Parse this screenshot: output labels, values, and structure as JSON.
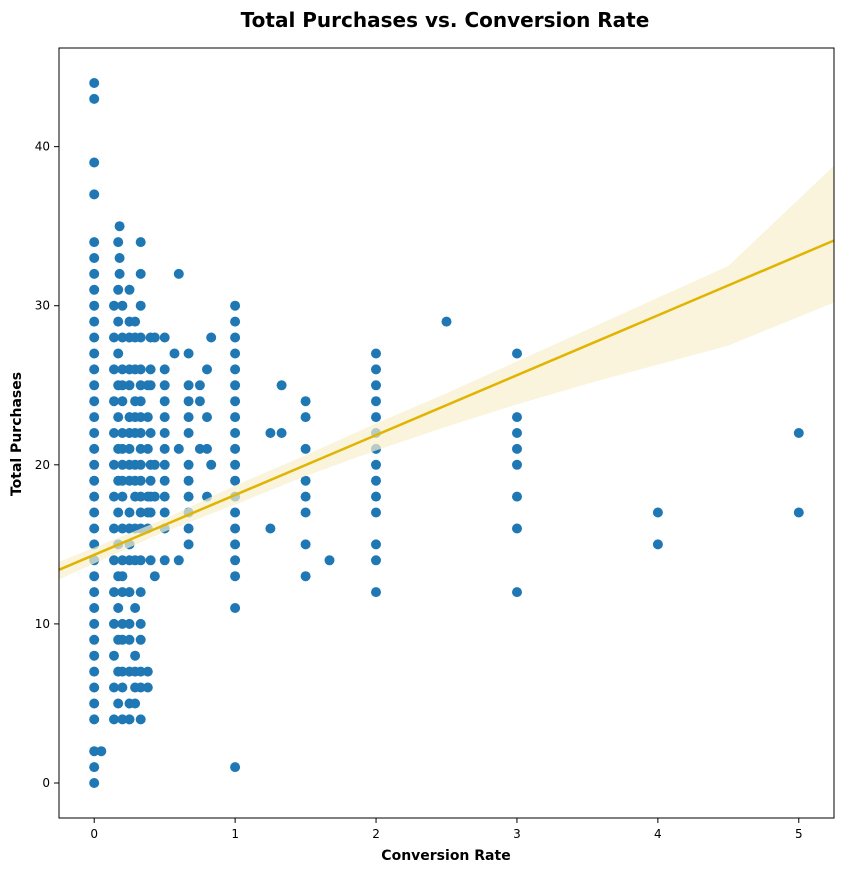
{
  "chart_data": {
    "type": "scatter",
    "title": "Total Purchases vs. Conversion Rate",
    "xlabel": "Conversion Rate",
    "ylabel": "Total Purchases",
    "xlim": [
      -0.25,
      5.25
    ],
    "ylim": [
      -2.2,
      46.2
    ],
    "xticks": [
      0,
      1,
      2,
      3,
      4,
      5
    ],
    "yticks": [
      0,
      10,
      20,
      30,
      40
    ],
    "grid": false,
    "legend": "none",
    "point_color": "#1f77b4",
    "regression_color": "#e0b400",
    "band_color": "#f7efcc",
    "regression": {
      "x": [
        -0.25,
        5.25
      ],
      "y": [
        13.4,
        34.1
      ]
    },
    "confidence_band": {
      "x": [
        -0.25,
        0.5,
        1.0,
        1.5,
        2.0,
        2.5,
        3.0,
        3.5,
        4.0,
        4.5,
        5.25
      ],
      "lower": [
        12.8,
        15.8,
        17.5,
        19.3,
        20.9,
        22.4,
        23.8,
        25.1,
        26.3,
        27.5,
        30.2
      ],
      "upper": [
        13.9,
        16.6,
        18.7,
        20.6,
        22.6,
        24.5,
        26.5,
        28.5,
        30.5,
        32.5,
        38.8
      ]
    },
    "points": [
      [
        0,
        44
      ],
      [
        0,
        43
      ],
      [
        0,
        39
      ],
      [
        0,
        37
      ],
      [
        0,
        34
      ],
      [
        0,
        33
      ],
      [
        0,
        32
      ],
      [
        0,
        31
      ],
      [
        0,
        30
      ],
      [
        0,
        29
      ],
      [
        0,
        28
      ],
      [
        0,
        27
      ],
      [
        0,
        26
      ],
      [
        0,
        25
      ],
      [
        0,
        24
      ],
      [
        0,
        23
      ],
      [
        0,
        22
      ],
      [
        0,
        21
      ],
      [
        0,
        20
      ],
      [
        0,
        19
      ],
      [
        0,
        18
      ],
      [
        0,
        17
      ],
      [
        0,
        16
      ],
      [
        0,
        15
      ],
      [
        0,
        14
      ],
      [
        0,
        13
      ],
      [
        0,
        12
      ],
      [
        0,
        11
      ],
      [
        0,
        10
      ],
      [
        0,
        9
      ],
      [
        0,
        8
      ],
      [
        0,
        7
      ],
      [
        0,
        6
      ],
      [
        0,
        5
      ],
      [
        0,
        4
      ],
      [
        0,
        2
      ],
      [
        0,
        1
      ],
      [
        0,
        0
      ],
      [
        0.05,
        2
      ],
      [
        0.14,
        30
      ],
      [
        0.14,
        28
      ],
      [
        0.14,
        26
      ],
      [
        0.14,
        24
      ],
      [
        0.14,
        22
      ],
      [
        0.14,
        20
      ],
      [
        0.14,
        18
      ],
      [
        0.14,
        16
      ],
      [
        0.14,
        14
      ],
      [
        0.14,
        12
      ],
      [
        0.14,
        10
      ],
      [
        0.14,
        8
      ],
      [
        0.14,
        6
      ],
      [
        0.14,
        4
      ],
      [
        0.17,
        34
      ],
      [
        0.17,
        31
      ],
      [
        0.17,
        29
      ],
      [
        0.17,
        27
      ],
      [
        0.17,
        25
      ],
      [
        0.17,
        23
      ],
      [
        0.17,
        21
      ],
      [
        0.17,
        19
      ],
      [
        0.17,
        17
      ],
      [
        0.17,
        15
      ],
      [
        0.17,
        13
      ],
      [
        0.17,
        11
      ],
      [
        0.17,
        9
      ],
      [
        0.17,
        7
      ],
      [
        0.17,
        5
      ],
      [
        0.18,
        35
      ],
      [
        0.18,
        33
      ],
      [
        0.18,
        32
      ],
      [
        0.2,
        30
      ],
      [
        0.2,
        28
      ],
      [
        0.2,
        26
      ],
      [
        0.2,
        25
      ],
      [
        0.2,
        24
      ],
      [
        0.2,
        22
      ],
      [
        0.2,
        21
      ],
      [
        0.2,
        20
      ],
      [
        0.2,
        19
      ],
      [
        0.2,
        18
      ],
      [
        0.2,
        16
      ],
      [
        0.2,
        14
      ],
      [
        0.2,
        13
      ],
      [
        0.2,
        12
      ],
      [
        0.2,
        10
      ],
      [
        0.2,
        9
      ],
      [
        0.2,
        7
      ],
      [
        0.2,
        6
      ],
      [
        0.2,
        4
      ],
      [
        0.25,
        31
      ],
      [
        0.25,
        29
      ],
      [
        0.25,
        28
      ],
      [
        0.25,
        26
      ],
      [
        0.25,
        25
      ],
      [
        0.25,
        23
      ],
      [
        0.25,
        22
      ],
      [
        0.25,
        21
      ],
      [
        0.25,
        20
      ],
      [
        0.25,
        19
      ],
      [
        0.25,
        17
      ],
      [
        0.25,
        16
      ],
      [
        0.25,
        15
      ],
      [
        0.25,
        14
      ],
      [
        0.25,
        12
      ],
      [
        0.25,
        10
      ],
      [
        0.25,
        9
      ],
      [
        0.25,
        7
      ],
      [
        0.25,
        5
      ],
      [
        0.25,
        4
      ],
      [
        0.29,
        29
      ],
      [
        0.29,
        28
      ],
      [
        0.29,
        26
      ],
      [
        0.29,
        24
      ],
      [
        0.29,
        23
      ],
      [
        0.29,
        22
      ],
      [
        0.29,
        20
      ],
      [
        0.29,
        19
      ],
      [
        0.29,
        18
      ],
      [
        0.29,
        16
      ],
      [
        0.29,
        14
      ],
      [
        0.29,
        11
      ],
      [
        0.29,
        8
      ],
      [
        0.29,
        7
      ],
      [
        0.29,
        6
      ],
      [
        0.29,
        5
      ],
      [
        0.33,
        34
      ],
      [
        0.33,
        32
      ],
      [
        0.33,
        30
      ],
      [
        0.33,
        28
      ],
      [
        0.33,
        26
      ],
      [
        0.33,
        25
      ],
      [
        0.33,
        24
      ],
      [
        0.33,
        23
      ],
      [
        0.33,
        22
      ],
      [
        0.33,
        21
      ],
      [
        0.33,
        20
      ],
      [
        0.33,
        19
      ],
      [
        0.33,
        18
      ],
      [
        0.33,
        17
      ],
      [
        0.33,
        16
      ],
      [
        0.33,
        14
      ],
      [
        0.33,
        12
      ],
      [
        0.33,
        10
      ],
      [
        0.33,
        9
      ],
      [
        0.33,
        7
      ],
      [
        0.33,
        6
      ],
      [
        0.33,
        4
      ],
      [
        0.38,
        25
      ],
      [
        0.38,
        23
      ],
      [
        0.38,
        21
      ],
      [
        0.38,
        18
      ],
      [
        0.38,
        17
      ],
      [
        0.38,
        16
      ],
      [
        0.38,
        7
      ],
      [
        0.38,
        6
      ],
      [
        0.4,
        28
      ],
      [
        0.4,
        26
      ],
      [
        0.4,
        25
      ],
      [
        0.4,
        22
      ],
      [
        0.4,
        20
      ],
      [
        0.4,
        19
      ],
      [
        0.4,
        18
      ],
      [
        0.4,
        17
      ],
      [
        0.4,
        14
      ],
      [
        0.43,
        28
      ],
      [
        0.43,
        20
      ],
      [
        0.43,
        18
      ],
      [
        0.43,
        13
      ],
      [
        0.5,
        28
      ],
      [
        0.5,
        26
      ],
      [
        0.5,
        25
      ],
      [
        0.5,
        24
      ],
      [
        0.5,
        23
      ],
      [
        0.5,
        22
      ],
      [
        0.5,
        21
      ],
      [
        0.5,
        20
      ],
      [
        0.5,
        19
      ],
      [
        0.5,
        18
      ],
      [
        0.5,
        17
      ],
      [
        0.5,
        16
      ],
      [
        0.5,
        14
      ],
      [
        0.57,
        27
      ],
      [
        0.6,
        32
      ],
      [
        0.6,
        21
      ],
      [
        0.6,
        14
      ],
      [
        0.67,
        27
      ],
      [
        0.67,
        25
      ],
      [
        0.67,
        24
      ],
      [
        0.67,
        23
      ],
      [
        0.67,
        22
      ],
      [
        0.67,
        20
      ],
      [
        0.67,
        19
      ],
      [
        0.67,
        18
      ],
      [
        0.67,
        17
      ],
      [
        0.67,
        16
      ],
      [
        0.67,
        15
      ],
      [
        0.75,
        25
      ],
      [
        0.75,
        24
      ],
      [
        0.75,
        21
      ],
      [
        0.8,
        26
      ],
      [
        0.8,
        23
      ],
      [
        0.8,
        21
      ],
      [
        0.8,
        18
      ],
      [
        0.83,
        28
      ],
      [
        0.83,
        20
      ],
      [
        1,
        30
      ],
      [
        1,
        29
      ],
      [
        1,
        28
      ],
      [
        1,
        27
      ],
      [
        1,
        26
      ],
      [
        1,
        25
      ],
      [
        1,
        24
      ],
      [
        1,
        23
      ],
      [
        1,
        22
      ],
      [
        1,
        21
      ],
      [
        1,
        20
      ],
      [
        1,
        19
      ],
      [
        1,
        18
      ],
      [
        1,
        17
      ],
      [
        1,
        16
      ],
      [
        1,
        15
      ],
      [
        1,
        14
      ],
      [
        1,
        13
      ],
      [
        1,
        11
      ],
      [
        1,
        1
      ],
      [
        1.25,
        22
      ],
      [
        1.25,
        16
      ],
      [
        1.33,
        25
      ],
      [
        1.33,
        22
      ],
      [
        1.5,
        24
      ],
      [
        1.5,
        23
      ],
      [
        1.5,
        21
      ],
      [
        1.5,
        19
      ],
      [
        1.5,
        18
      ],
      [
        1.5,
        17
      ],
      [
        1.5,
        15
      ],
      [
        1.5,
        13
      ],
      [
        1.67,
        14
      ],
      [
        2,
        27
      ],
      [
        2,
        26
      ],
      [
        2,
        25
      ],
      [
        2,
        24
      ],
      [
        2,
        23
      ],
      [
        2,
        22
      ],
      [
        2,
        21
      ],
      [
        2,
        20
      ],
      [
        2,
        19
      ],
      [
        2,
        18
      ],
      [
        2,
        17
      ],
      [
        2,
        15
      ],
      [
        2,
        14
      ],
      [
        2,
        12
      ],
      [
        2.5,
        29
      ],
      [
        3,
        27
      ],
      [
        3,
        23
      ],
      [
        3,
        22
      ],
      [
        3,
        21
      ],
      [
        3,
        20
      ],
      [
        3,
        18
      ],
      [
        3,
        16
      ],
      [
        3,
        12
      ],
      [
        4,
        17
      ],
      [
        4,
        15
      ],
      [
        5,
        22
      ],
      [
        5,
        17
      ]
    ]
  }
}
